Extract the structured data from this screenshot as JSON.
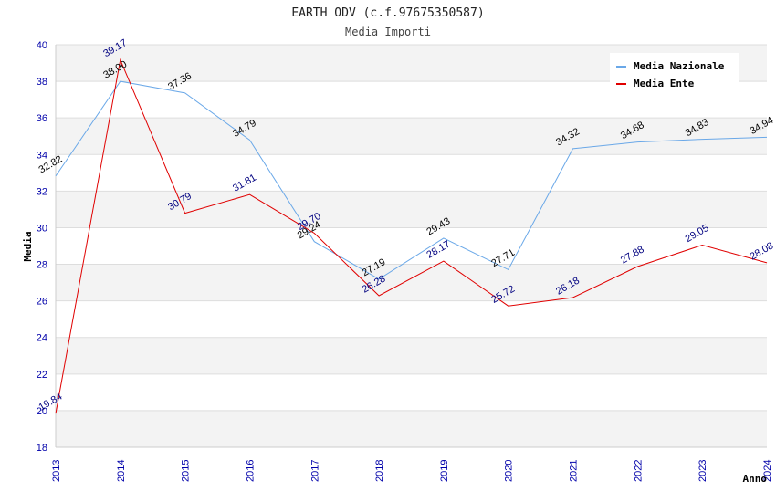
{
  "chart_data": {
    "type": "line",
    "title": "EARTH ODV (c.f.97675350587)",
    "subtitle": "Media Importi",
    "xlabel": "Anno",
    "ylabel": "Media",
    "ylim": [
      18,
      40
    ],
    "yticks": [
      18,
      20,
      22,
      24,
      26,
      28,
      30,
      32,
      34,
      36,
      38,
      40
    ],
    "grid": true,
    "legend_position": "top-right",
    "x": [
      "2013",
      "2014",
      "2015",
      "2016",
      "2017",
      "2018",
      "2019",
      "2020",
      "2021",
      "2022",
      "2023",
      "2024"
    ],
    "series": [
      {
        "name": "Media Nazionale",
        "color": "#6aa8e8",
        "label_color": "#000000",
        "values": [
          32.82,
          38.0,
          37.36,
          34.79,
          29.24,
          27.19,
          29.43,
          27.71,
          34.32,
          34.68,
          34.83,
          34.94
        ],
        "labels": [
          "32.82",
          "38.00",
          "37.36",
          "34.79",
          "29.24",
          "27.19",
          "29.43",
          "27.71",
          "34.32",
          "34.68",
          "34.83",
          "34.94"
        ]
      },
      {
        "name": "Media Ente",
        "color": "#e00000",
        "label_color": "#000080",
        "values": [
          19.84,
          39.17,
          30.79,
          31.81,
          29.7,
          26.28,
          28.17,
          25.72,
          26.18,
          27.88,
          29.05,
          28.08
        ],
        "labels": [
          "19.84",
          "39.17",
          "30.79",
          "31.81",
          "29.70",
          "26.28",
          "28.17",
          "25.72",
          "26.18",
          "27.88",
          "29.05",
          "28.08"
        ]
      }
    ]
  }
}
